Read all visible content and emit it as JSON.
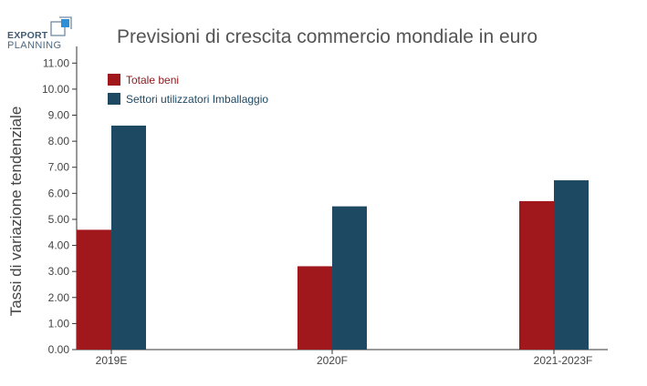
{
  "logo": {
    "line1": "EXPORT",
    "line2": "PLANNING",
    "icon": "export-planning-logo-mark"
  },
  "chart_data": {
    "type": "bar",
    "title": "Previsioni di crescita commercio mondiale in euro",
    "xlabel": "",
    "ylabel": "Tassi di variazione tendenziale",
    "categories": [
      "2019E",
      "2020F",
      "2021-2023F"
    ],
    "series": [
      {
        "name": "Totale beni",
        "values": [
          4.6,
          3.2,
          5.7
        ],
        "color": "#a0171c"
      },
      {
        "name": "Settori utilizzatori Imballaggio",
        "values": [
          8.6,
          5.5,
          6.5
        ],
        "color": "#1e4963"
      }
    ],
    "ylim": [
      0,
      11.5
    ],
    "yticks": [
      "0.00",
      "1.00",
      "2.00",
      "3.00",
      "4.00",
      "5.00",
      "6.00",
      "7.00",
      "8.00",
      "9.00",
      "10.00",
      "11.00"
    ],
    "grid": false,
    "legend_position": "top-left"
  }
}
